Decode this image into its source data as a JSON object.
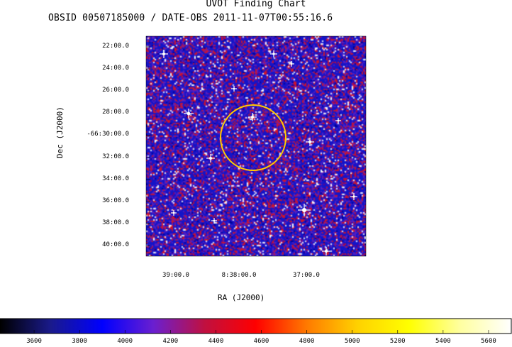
{
  "header": {
    "title": "UVOT Finding Chart",
    "subtitle": "OBSID 00507185000 / DATE-OBS 2011-11-07T00:55:16.6"
  },
  "chart_data": {
    "type": "heatmap",
    "xlabel": "RA (J2000)",
    "ylabel": "Dec (J2000)",
    "x_ticks": [
      "39:00.0",
      "8:38:00.0",
      "37:00.0"
    ],
    "y_ticks": [
      "22:00.0",
      "24:00.0",
      "26:00.0",
      "28:00.0",
      "-66:30:00.0",
      "32:00.0",
      "34:00.0",
      "36:00.0",
      "38:00.0",
      "40:00.0"
    ],
    "colorbar": {
      "ticks": [
        "3600",
        "3800",
        "4000",
        "4200",
        "4400",
        "4600",
        "4800",
        "5000",
        "5200",
        "5400",
        "5600"
      ],
      "range": [
        3450,
        5700
      ],
      "colors": [
        "#000000",
        "#1a1a8c",
        "#0000ff",
        "#6a1fd0",
        "#c01040",
        "#ff0000",
        "#ff7a00",
        "#ffd200",
        "#ffff00",
        "#ffffa0",
        "#ffffff"
      ]
    },
    "markers": [
      {
        "type": "circle",
        "color": "#ffcc00"
      }
    ]
  }
}
